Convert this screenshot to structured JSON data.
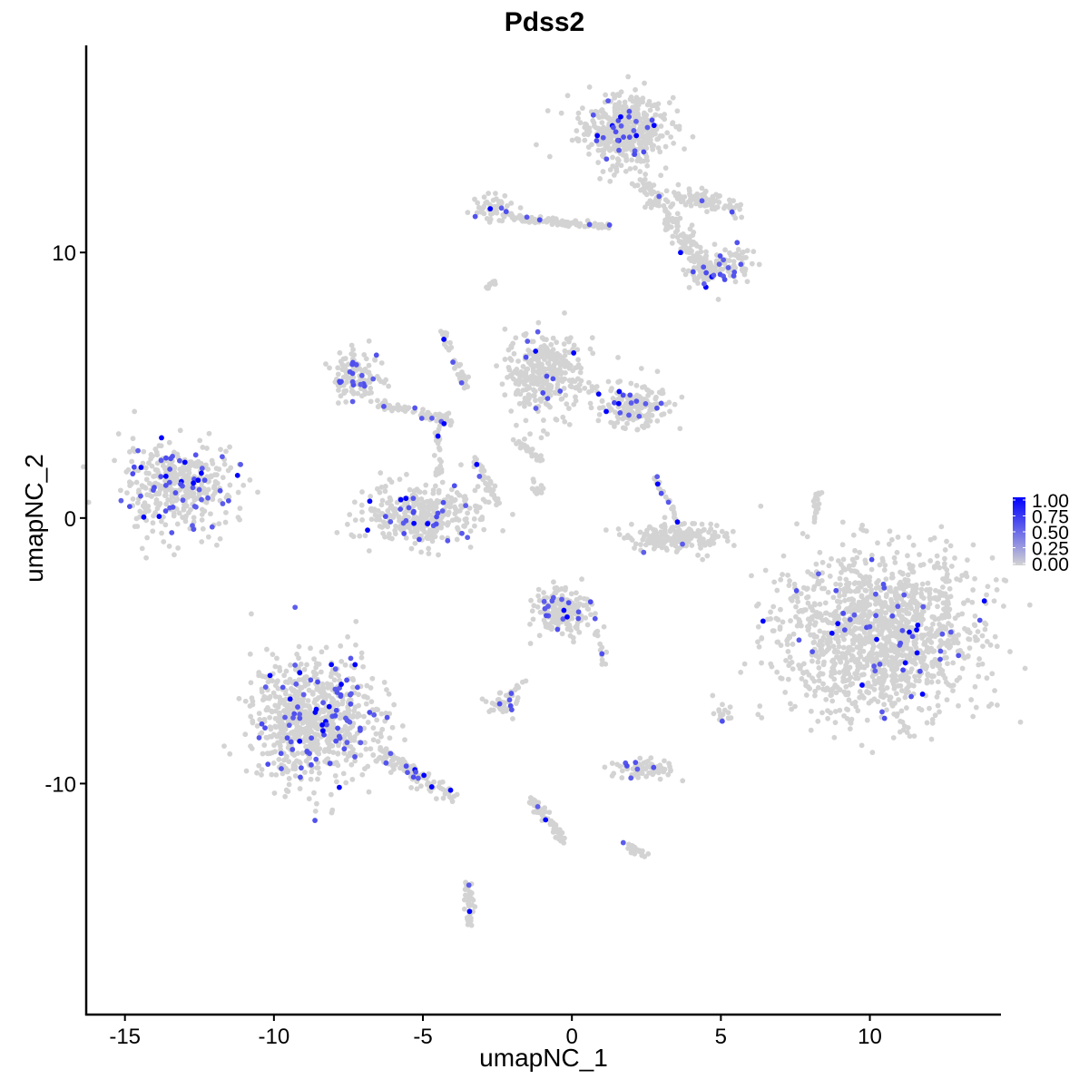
{
  "chart_data": {
    "type": "scatter",
    "title": "Pdss2",
    "xlabel": "umapNC_1",
    "ylabel": "umapNC_2",
    "xlim": [
      -16.3,
      14.4
    ],
    "ylim": [
      -18.7,
      17.8
    ],
    "x_ticks": [
      -15,
      -10,
      -5,
      0,
      5,
      10
    ],
    "y_ticks": [
      -10,
      0,
      10
    ],
    "grid": false,
    "color_scale": {
      "low": "#D3D3D3",
      "high": "#0000FF",
      "min": 0,
      "max": 1,
      "ticks": [
        "0.00",
        "0.25",
        "0.50",
        "0.75",
        "1.00"
      ]
    },
    "legend_position": "right",
    "clusters": [
      {
        "cx": 1.7,
        "cy": 14.6,
        "sx": 0.9,
        "sy": 0.8,
        "n": 500,
        "expressed": 0.05
      },
      {
        "cx": -13.2,
        "cy": 1.2,
        "sx": 1.2,
        "sy": 1.0,
        "n": 420,
        "expressed": 0.12
      },
      {
        "cx": -5.0,
        "cy": 0.1,
        "sx": 1.2,
        "sy": 0.7,
        "n": 380,
        "expressed": 0.07
      },
      {
        "cx": -7.2,
        "cy": 5.3,
        "sx": 0.5,
        "sy": 0.6,
        "n": 120,
        "expressed": 0.1
      },
      {
        "cx": -0.9,
        "cy": 5.4,
        "sx": 0.8,
        "sy": 1.0,
        "n": 330,
        "expressed": 0.04
      },
      {
        "cx": 2.1,
        "cy": 4.2,
        "sx": 0.8,
        "sy": 0.5,
        "n": 180,
        "expressed": 0.05
      },
      {
        "cx": 3.5,
        "cy": -0.7,
        "sx": 1.0,
        "sy": 0.35,
        "n": 200,
        "expressed": 0.01
      },
      {
        "cx": 10.3,
        "cy": -4.4,
        "sx": 2.1,
        "sy": 1.9,
        "n": 1400,
        "expressed": 0.03
      },
      {
        "cx": -8.7,
        "cy": -7.6,
        "sx": 1.3,
        "sy": 1.4,
        "n": 800,
        "expressed": 0.1
      },
      {
        "cx": -0.3,
        "cy": -3.5,
        "sx": 0.6,
        "sy": 0.55,
        "n": 200,
        "expressed": 0.05
      },
      {
        "cx": -2.4,
        "cy": -7.0,
        "sx": 0.35,
        "sy": 0.25,
        "n": 40,
        "expressed": 0.1
      },
      {
        "cx": 2.4,
        "cy": -9.5,
        "sx": 0.7,
        "sy": 0.25,
        "n": 70,
        "expressed": 0.08
      },
      {
        "cx": 5.1,
        "cy": -7.4,
        "sx": 0.15,
        "sy": 0.25,
        "n": 15,
        "expressed": 0.15
      },
      {
        "cx": 4.3,
        "cy": 9.2,
        "sx": 0.3,
        "sy": 0.4,
        "n": 50,
        "expressed": 0.08
      },
      {
        "cx": 5.3,
        "cy": 9.6,
        "sx": 0.5,
        "sy": 0.35,
        "n": 70,
        "expressed": 0.06
      },
      {
        "cx": -2.6,
        "cy": 11.6,
        "sx": 0.4,
        "sy": 0.3,
        "n": 60,
        "expressed": 0.06
      }
    ],
    "trajectories": [
      {
        "from": [
          2.3,
          12.8
        ],
        "to": [
          4.6,
          9.2
        ],
        "n": 160,
        "spread": 0.35,
        "expressed": 0.04
      },
      {
        "from": [
          3.5,
          12.2
        ],
        "to": [
          5.6,
          11.7
        ],
        "n": 90,
        "spread": 0.3,
        "expressed": 0.03
      },
      {
        "from": [
          -2.0,
          11.3
        ],
        "to": [
          1.2,
          11.0
        ],
        "n": 90,
        "spread": 0.15,
        "expressed": 0.04
      },
      {
        "from": [
          -6.5,
          4.3
        ],
        "to": [
          -4.0,
          3.7
        ],
        "n": 70,
        "spread": 0.2,
        "expressed": 0.08
      },
      {
        "from": [
          -4.4,
          7.2
        ],
        "to": [
          -3.5,
          4.8
        ],
        "n": 40,
        "spread": 0.15,
        "expressed": 0.05
      },
      {
        "from": [
          -4.5,
          3.5
        ],
        "to": [
          -4.5,
          1.6
        ],
        "n": 30,
        "spread": 0.12,
        "expressed": 0.06
      },
      {
        "from": [
          -3.3,
          2.2
        ],
        "to": [
          -2.5,
          0.5
        ],
        "n": 40,
        "spread": 0.15,
        "expressed": 0.05
      },
      {
        "from": [
          -6.5,
          -8.8
        ],
        "to": [
          -3.9,
          -10.5
        ],
        "n": 120,
        "spread": 0.3,
        "expressed": 0.12
      },
      {
        "from": [
          -1.4,
          -10.5
        ],
        "to": [
          -0.2,
          -12.2
        ],
        "n": 60,
        "spread": 0.18,
        "expressed": 0.06
      },
      {
        "from": [
          -3.5,
          -13.6
        ],
        "to": [
          -3.4,
          -15.3
        ],
        "n": 40,
        "spread": 0.15,
        "expressed": 0.03
      },
      {
        "from": [
          1.8,
          -12.3
        ],
        "to": [
          2.5,
          -12.7
        ],
        "n": 25,
        "spread": 0.12,
        "expressed": 0.08
      },
      {
        "from": [
          8.1,
          -0.2
        ],
        "to": [
          8.3,
          1.0
        ],
        "n": 20,
        "spread": 0.08,
        "expressed": 0.0
      },
      {
        "from": [
          -2.0,
          3.0
        ],
        "to": [
          -1.0,
          2.2
        ],
        "n": 25,
        "spread": 0.15,
        "expressed": 0.04
      },
      {
        "from": [
          -2.9,
          8.6
        ],
        "to": [
          -2.6,
          8.9
        ],
        "n": 12,
        "spread": 0.08,
        "expressed": 0.0
      },
      {
        "from": [
          2.8,
          1.5
        ],
        "to": [
          3.6,
          -0.2
        ],
        "n": 25,
        "spread": 0.12,
        "expressed": 0.15
      },
      {
        "from": [
          -1.6,
          -6.1
        ],
        "to": [
          -2.1,
          -6.7
        ],
        "n": 12,
        "spread": 0.08,
        "expressed": 0.1
      },
      {
        "from": [
          0.8,
          -4.3
        ],
        "to": [
          1.1,
          -5.6
        ],
        "n": 15,
        "spread": 0.1,
        "expressed": 0.05
      },
      {
        "from": [
          -1.2,
          1.3
        ],
        "to": [
          -1.1,
          0.8
        ],
        "n": 15,
        "spread": 0.2,
        "expressed": 0.0
      }
    ]
  }
}
